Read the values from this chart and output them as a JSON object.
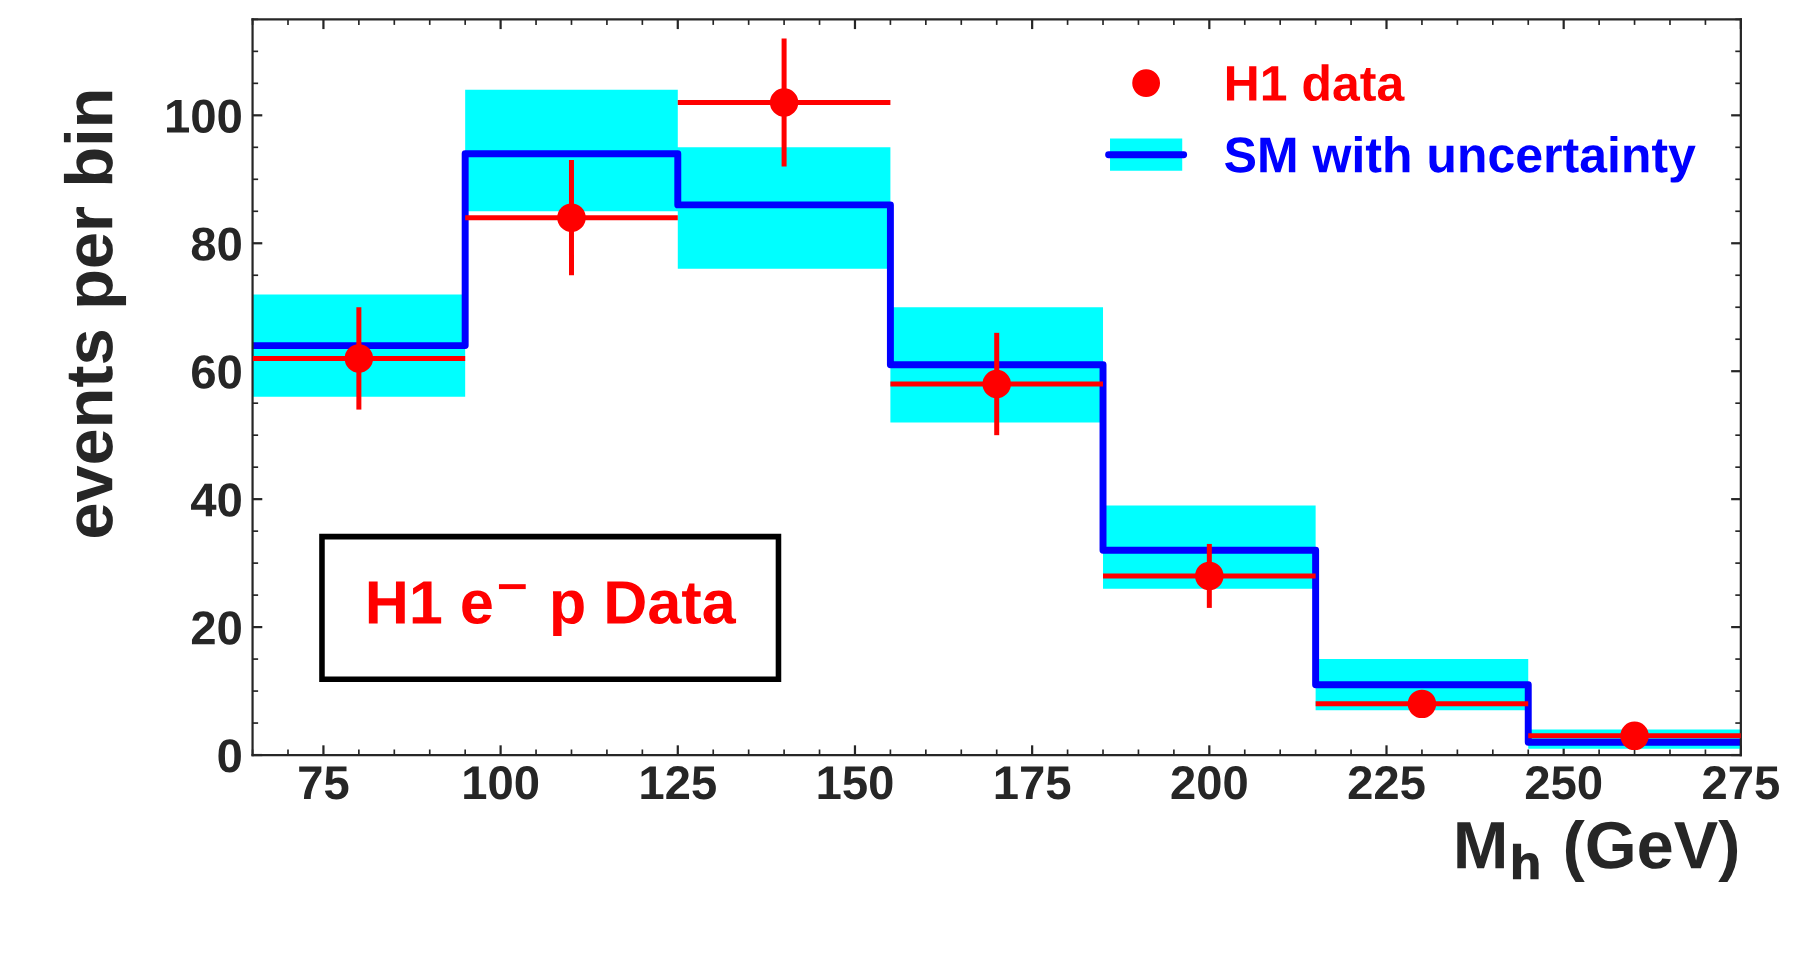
{
  "chart_data": {
    "type": "step",
    "series": [
      {
        "name": "SM with uncertainty",
        "color": "#0000ff",
        "x": [
          65,
          95,
          125,
          155,
          185,
          215,
          245,
          275
        ],
        "values": [
          64,
          94,
          86,
          61,
          32,
          11,
          2,
          2
        ],
        "lower": [
          56,
          85,
          76,
          52,
          26,
          7,
          1,
          1
        ],
        "upper": [
          72,
          104,
          95,
          70,
          39,
          15,
          4,
          4
        ]
      },
      {
        "name": "H1 data",
        "type": "scatter",
        "marker": "circle",
        "color": "#ff0000",
        "x": [
          80,
          110,
          140,
          170,
          200,
          230,
          260
        ],
        "values": [
          62,
          84,
          102,
          58,
          28,
          8,
          3
        ],
        "errors": [
          8,
          9,
          10,
          8,
          5,
          2,
          1
        ],
        "xerrors": [
          15,
          15,
          15,
          15,
          15,
          15,
          15
        ]
      }
    ],
    "xlabel": "M$_{h}$ (GeV)",
    "ylabel": "events per bin",
    "annotations": [
      "H1 e$^{−}$ p Data"
    ],
    "xlim": [
      65,
      275
    ],
    "xticks": [
      75,
      100,
      125,
      150,
      175,
      200,
      225,
      250,
      275
    ],
    "ylim": [
      0,
      115
    ],
    "yticks": [
      0,
      20,
      40,
      60,
      80,
      100
    ],
    "legend": "top right"
  }
}
